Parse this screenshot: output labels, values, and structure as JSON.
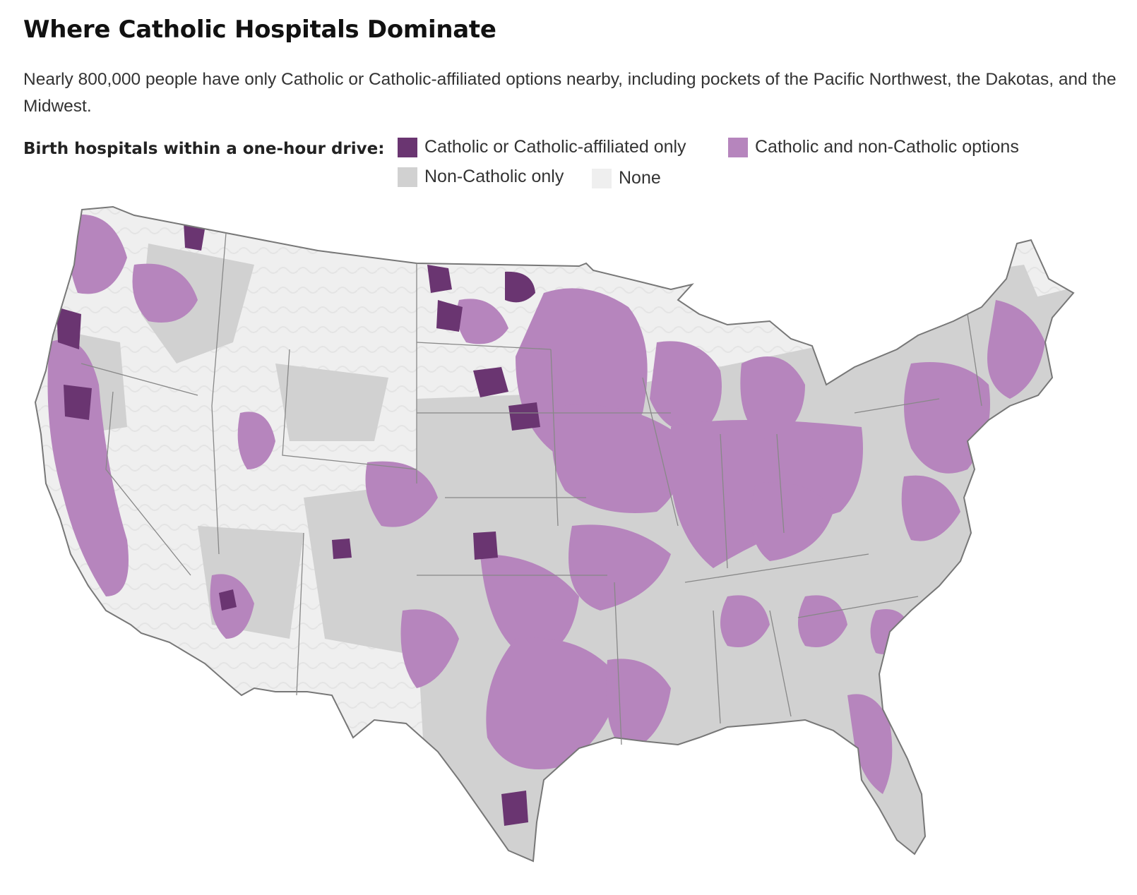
{
  "title": "Where Catholic Hospitals Dominate",
  "subtitle": "Nearly 800,000 people have only Catholic or Catholic-affiliated options nearby, including pockets of the Pacific Northwest, the Dakotas, and the Midwest.",
  "legend": {
    "title": "Birth hospitals within a one-hour drive:",
    "items": [
      {
        "label": "Catholic or Catholic-affiliated only",
        "color": "#6a3571"
      },
      {
        "label": "Catholic and non-Catholic options",
        "color": "#b685bd"
      },
      {
        "label": "Non-Catholic only",
        "color": "#d1d1d1"
      },
      {
        "label": "None",
        "color": "#efefef"
      }
    ]
  },
  "map": {
    "region": "contiguous-united-states",
    "border_color": "#777777"
  }
}
